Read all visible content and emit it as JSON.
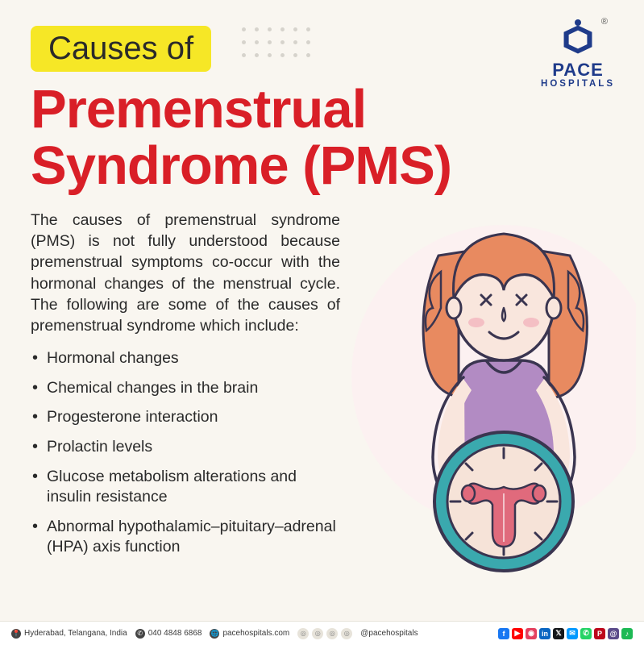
{
  "header": {
    "pill_label": "Causes of",
    "pill_bg": "#f6e726",
    "pill_color": "#2a2a2a",
    "title_line1": "Premenstrual",
    "title_line2": "Syndrome (PMS)",
    "title_color": "#d91f27"
  },
  "brand": {
    "name": "PACE",
    "sub": "HOSPITALS",
    "color": "#1f3b8a",
    "registered": "®"
  },
  "body": {
    "description": "The causes of premenstrual syndrome (PMS) is not fully understood because premenstrual symptoms co-occur with the hormonal changes of the menstrual cycle. The following are some of the causes of premenstrual syndrome which include:",
    "text_color": "#2a2a2a",
    "causes": [
      "Hormonal changes",
      "Chemical changes in the brain",
      "Progesterone interaction",
      "Prolactin levels",
      "Glucose metabolism alterations and insulin resistance",
      "Abnormal hypothalamic–pituitary–adrenal (HPA) axis function"
    ]
  },
  "illustration": {
    "hair": "#e88a60",
    "skin": "#f9e6dd",
    "shirt": "#b28bc3",
    "outline": "#3a3550",
    "bg_circle": "#fdeff1",
    "clock_ring": "#3aa9ae",
    "clock_face": "#f6e3d8",
    "uterus": "#e06a7c",
    "cheek": "#f4bfc4"
  },
  "footer": {
    "location": "Hyderabad, Telangana, India",
    "phone": "040 4848 6868",
    "website": "pacehospitals.com",
    "handle": "@pacehospitals",
    "social_colors": {
      "fb": "#1877f2",
      "yt": "#ff0000",
      "ig": "#e4405f",
      "li": "#0a66c2",
      "tw": "#14171a",
      "ms": "#0099ff",
      "wa": "#25d366",
      "pi": "#bd081c",
      "th": "#5b4b8a",
      "sp": "#1db954"
    }
  },
  "colors": {
    "page_bg": "#f9f6f0",
    "dot": "#d6d3cc"
  }
}
